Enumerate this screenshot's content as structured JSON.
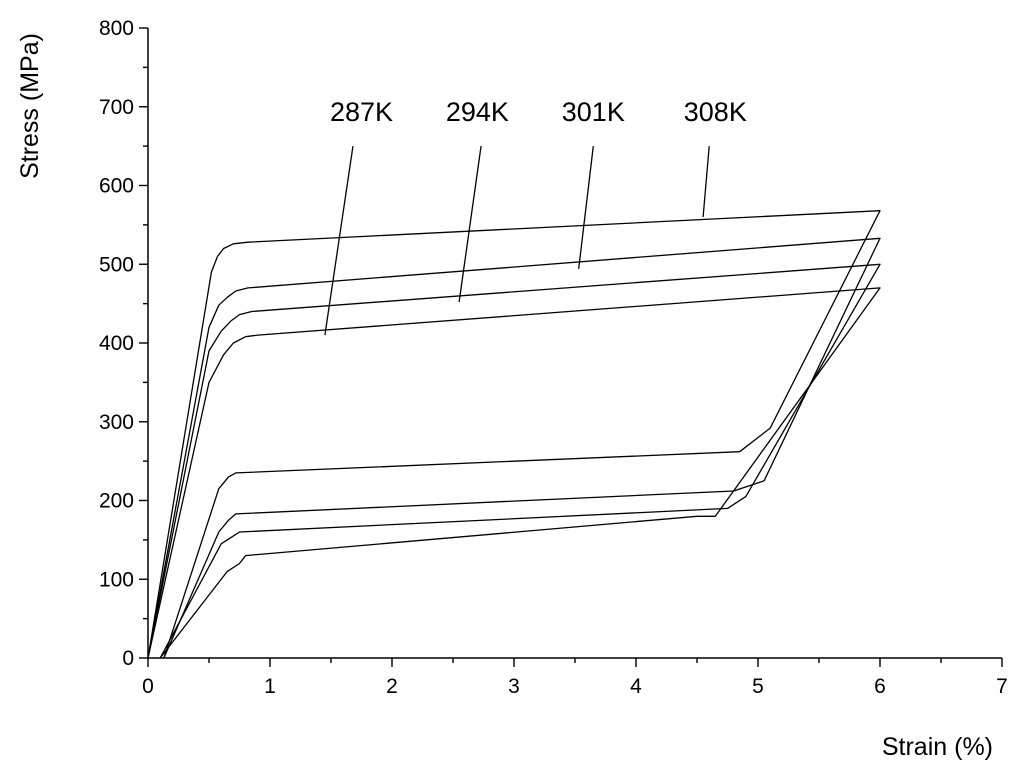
{
  "chart_data": {
    "type": "line",
    "xlabel": "Strain (%)",
    "ylabel": "Stress (MPa)",
    "xlim": [
      0,
      7
    ],
    "ylim": [
      0,
      800
    ],
    "x_ticks": [
      "0",
      "1",
      "2",
      "3",
      "4",
      "5",
      "6",
      "7"
    ],
    "y_ticks": [
      "0",
      "100",
      "200",
      "300",
      "400",
      "500",
      "600",
      "700",
      "800"
    ],
    "grid": false,
    "legend": "none",
    "series": [
      {
        "name": "287K",
        "x": [
          0.0,
          0.5,
          0.62,
          0.7,
          0.8,
          0.9,
          6.0,
          4.65,
          4.5,
          0.8,
          0.75,
          0.65,
          0.1
        ],
        "y": [
          0,
          350,
          385,
          400,
          408,
          410,
          470,
          180,
          180,
          130,
          120,
          110,
          0
        ]
      },
      {
        "name": "294K",
        "x": [
          0.0,
          0.5,
          0.6,
          0.68,
          0.75,
          0.85,
          6.0,
          4.9,
          4.75,
          0.75,
          0.7,
          0.6,
          0.1
        ],
        "y": [
          0,
          390,
          415,
          428,
          436,
          440,
          500,
          205,
          190,
          160,
          155,
          145,
          0
        ]
      },
      {
        "name": "301K",
        "x": [
          0.0,
          0.5,
          0.58,
          0.65,
          0.72,
          0.82,
          6.0,
          5.05,
          4.8,
          0.72,
          0.66,
          0.58,
          0.13
        ],
        "y": [
          0,
          420,
          448,
          458,
          466,
          470,
          533,
          225,
          212,
          183,
          175,
          160,
          0
        ]
      },
      {
        "name": "308K",
        "x": [
          0.0,
          0.52,
          0.57,
          0.62,
          0.7,
          0.82,
          6.0,
          5.1,
          4.85,
          0.72,
          0.66,
          0.58,
          0.13
        ],
        "y": [
          0,
          490,
          510,
          520,
          526,
          528,
          568,
          292,
          262,
          235,
          230,
          215,
          0
        ]
      }
    ],
    "annotations": [
      {
        "text": "287K",
        "x_text": 1.75,
        "y_text": 682,
        "x_from": 1.68,
        "y_from": 650,
        "x_to": 1.45,
        "y_to": 410
      },
      {
        "text": "294K",
        "x_text": 2.7,
        "y_text": 682,
        "x_from": 2.73,
        "y_from": 650,
        "x_to": 2.55,
        "y_to": 452
      },
      {
        "text": "301K",
        "x_text": 3.65,
        "y_text": 682,
        "x_from": 3.65,
        "y_from": 650,
        "x_to": 3.53,
        "y_to": 494
      },
      {
        "text": "308K",
        "x_text": 4.65,
        "y_text": 682,
        "x_from": 4.6,
        "y_from": 650,
        "x_to": 4.55,
        "y_to": 560
      }
    ]
  }
}
